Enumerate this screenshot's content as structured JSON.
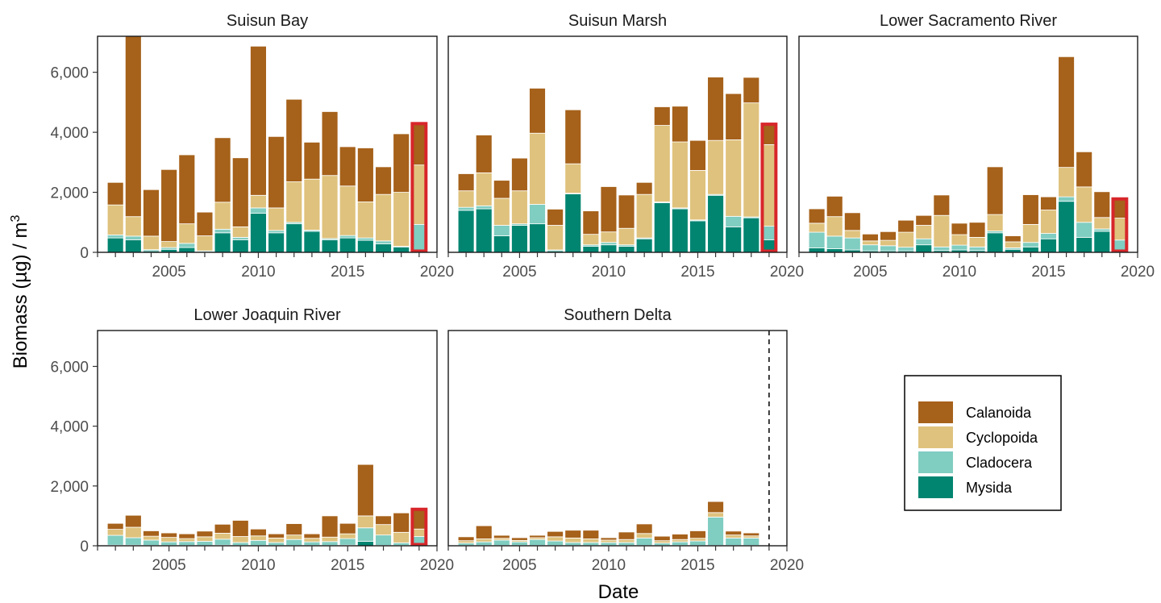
{
  "chart_data": {
    "type": "bar",
    "stacked": true,
    "xlabel": "Date",
    "ylabel": "Biomass (µg) / m",
    "ylabel_superscript": "3",
    "ylim": [
      0,
      7200
    ],
    "xlim": [
      2001,
      2020
    ],
    "y_ticks": [
      0,
      2000,
      4000,
      6000
    ],
    "y_tick_labels": [
      "0",
      "2,000",
      "4,000",
      "6,000"
    ],
    "x_ticks": [
      2005,
      2010,
      2015,
      2020
    ],
    "x_tick_labels": [
      "2005",
      "2010",
      "2015",
      "2020"
    ],
    "grid": false,
    "legend_position": "bottom-right",
    "stack_order": [
      "Mysida",
      "Cladocera",
      "Cyclopoida",
      "Calanoida"
    ],
    "series_info": [
      {
        "name": "Calanoida",
        "color": "#a6611a"
      },
      {
        "name": "Cyclopoida",
        "color": "#dfc27d"
      },
      {
        "name": "Cladocera",
        "color": "#80cdc1"
      },
      {
        "name": "Mysida",
        "color": "#018571"
      }
    ],
    "highlight_color": "#d7262a",
    "years": [
      2002,
      2003,
      2004,
      2005,
      2006,
      2007,
      2008,
      2009,
      2010,
      2011,
      2012,
      2013,
      2014,
      2015,
      2016,
      2017,
      2018,
      2019
    ],
    "panels": [
      {
        "title": "Suisun Bay",
        "highlight_year": 2019,
        "series": {
          "Mysida": [
            480,
            420,
            50,
            100,
            160,
            20,
            650,
            420,
            1300,
            650,
            950,
            700,
            420,
            480,
            400,
            280,
            180,
            80
          ],
          "Cladocera": [
            100,
            120,
            40,
            60,
            140,
            30,
            120,
            80,
            180,
            80,
            50,
            40,
            40,
            80,
            80,
            100,
            20,
            850
          ],
          "Cyclopoida": [
            1000,
            650,
            450,
            200,
            650,
            500,
            900,
            350,
            420,
            750,
            1350,
            1700,
            2100,
            1650,
            1200,
            1550,
            1800,
            1980
          ],
          "Calanoida": [
            750,
            6300,
            1550,
            2400,
            2300,
            790,
            2150,
            2300,
            4970,
            2380,
            2750,
            1230,
            2130,
            1310,
            1800,
            920,
            1950,
            1420
          ]
        }
      },
      {
        "title": "Suisun Marsh",
        "highlight_year": 2019,
        "series": {
          "Mysida": [
            1400,
            1450,
            550,
            900,
            950,
            50,
            1950,
            200,
            250,
            200,
            450,
            1650,
            1450,
            1050,
            1900,
            850,
            1150,
            420
          ],
          "Cladocera": [
            100,
            100,
            350,
            50,
            650,
            30,
            20,
            50,
            80,
            50,
            30,
            30,
            30,
            30,
            30,
            350,
            30,
            450
          ],
          "Cyclopoida": [
            550,
            1100,
            900,
            1100,
            2370,
            820,
            980,
            350,
            350,
            550,
            1450,
            2550,
            2200,
            1650,
            1800,
            2550,
            3800,
            2720
          ],
          "Calanoida": [
            570,
            1260,
            600,
            1090,
            1500,
            540,
            1800,
            780,
            1510,
            1110,
            400,
            620,
            1190,
            1000,
            2110,
            1540,
            850,
            720
          ]
        }
      },
      {
        "title": "Lower Sacramento River",
        "highlight_year": 2019,
        "series": {
          "Mysida": [
            150,
            120,
            80,
            50,
            50,
            50,
            250,
            60,
            80,
            60,
            650,
            100,
            180,
            450,
            1700,
            500,
            700,
            60
          ],
          "Cladocera": [
            520,
            420,
            400,
            200,
            170,
            120,
            200,
            120,
            160,
            120,
            60,
            50,
            150,
            180,
            150,
            500,
            80,
            350
          ],
          "Cyclopoida": [
            300,
            650,
            250,
            130,
            180,
            500,
            450,
            1050,
            350,
            320,
            550,
            200,
            600,
            780,
            980,
            1180,
            380,
            730
          ],
          "Calanoida": [
            480,
            680,
            590,
            230,
            290,
            400,
            330,
            680,
            380,
            500,
            1590,
            200,
            990,
            440,
            3690,
            1170,
            860,
            680
          ]
        }
      },
      {
        "title": "Lower Joaquin River",
        "highlight_year": 2019,
        "series": {
          "Mysida": [
            20,
            20,
            10,
            10,
            10,
            10,
            20,
            10,
            10,
            10,
            10,
            10,
            10,
            20,
            150,
            10,
            10,
            10
          ],
          "Cladocera": [
            330,
            250,
            180,
            120,
            130,
            140,
            200,
            100,
            170,
            100,
            200,
            120,
            130,
            220,
            450,
            350,
            90,
            300
          ],
          "Cyclopoida": [
            200,
            350,
            130,
            150,
            100,
            150,
            200,
            200,
            150,
            150,
            150,
            120,
            150,
            160,
            400,
            350,
            350,
            250
          ],
          "Calanoida": [
            200,
            400,
            180,
            150,
            160,
            190,
            300,
            540,
            230,
            140,
            380,
            150,
            710,
            350,
            1720,
            290,
            650,
            700
          ]
        }
      },
      {
        "title": "Southern Delta",
        "highlight_year": null,
        "dashed_line_x": 2019,
        "series": {
          "Mysida": [
            10,
            10,
            10,
            10,
            10,
            10,
            10,
            10,
            10,
            10,
            10,
            10,
            10,
            10,
            10,
            10,
            10,
            null
          ],
          "Cladocera": [
            80,
            120,
            180,
            120,
            200,
            150,
            100,
            100,
            100,
            100,
            250,
            80,
            120,
            150,
            950,
            250,
            250,
            null
          ],
          "Cyclopoida": [
            80,
            100,
            60,
            50,
            60,
            140,
            150,
            120,
            80,
            100,
            150,
            80,
            80,
            90,
            150,
            100,
            70,
            null
          ],
          "Calanoida": [
            130,
            440,
            100,
            90,
            80,
            180,
            260,
            290,
            80,
            250,
            320,
            150,
            180,
            250,
            370,
            130,
            100,
            null
          ]
        }
      }
    ]
  }
}
